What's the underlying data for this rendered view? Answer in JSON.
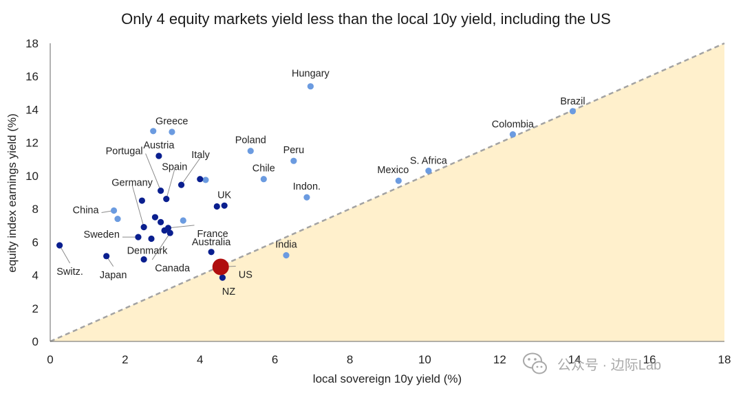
{
  "chart_data": {
    "type": "scatter",
    "title": "Only 4 equity markets yield less than the local 10y yield, including the US",
    "xlabel": "local sovereign 10y yield (%)",
    "ylabel": "equity index earnings yield (%)",
    "xlim": [
      0,
      18
    ],
    "ylim": [
      0,
      18
    ],
    "xticks": [
      "0",
      "2",
      "4",
      "6",
      "8",
      "10",
      "12",
      "14",
      "16",
      "18"
    ],
    "yticks": [
      "0",
      "2",
      "4",
      "6",
      "8",
      "10",
      "12",
      "14",
      "16",
      "18"
    ],
    "grid": false,
    "colors": {
      "developed": "#0a1f8f",
      "emerging": "#6b9be0",
      "us": "#b00e0e",
      "shade": "#fff0cc",
      "diagonal": "#a3a3a3"
    },
    "points": [
      {
        "label": "Hungary",
        "x": 6.95,
        "y": 15.4,
        "group": "emerging"
      },
      {
        "label": "Brazil",
        "x": 13.95,
        "y": 13.9,
        "group": "emerging"
      },
      {
        "label": "Colombia",
        "x": 12.35,
        "y": 12.5,
        "group": "emerging"
      },
      {
        "label": "S. Africa",
        "x": 10.1,
        "y": 10.3,
        "group": "emerging"
      },
      {
        "label": "Mexico",
        "x": 9.3,
        "y": 9.7,
        "group": "emerging"
      },
      {
        "label": "Poland",
        "x": 5.35,
        "y": 11.5,
        "group": "emerging"
      },
      {
        "label": "Peru",
        "x": 6.5,
        "y": 10.9,
        "group": "emerging"
      },
      {
        "label": "Chile",
        "x": 5.7,
        "y": 9.8,
        "group": "emerging"
      },
      {
        "label": "Indon.",
        "x": 6.85,
        "y": 8.7,
        "group": "emerging"
      },
      {
        "label": "India",
        "x": 6.3,
        "y": 5.2,
        "group": "emerging"
      },
      {
        "label": "Greece",
        "x": 2.75,
        "y": 12.7,
        "group": "emerging"
      },
      {
        "label": "",
        "x": 3.25,
        "y": 12.65,
        "group": "emerging"
      },
      {
        "label": "China",
        "x": 1.7,
        "y": 7.9,
        "group": "emerging"
      },
      {
        "label": "",
        "x": 1.8,
        "y": 7.4,
        "group": "emerging"
      },
      {
        "label": "",
        "x": 4.15,
        "y": 9.75,
        "group": "emerging"
      },
      {
        "label": "",
        "x": 3.55,
        "y": 7.3,
        "group": "emerging"
      },
      {
        "label": "Austria",
        "x": 2.9,
        "y": 11.2,
        "group": "developed"
      },
      {
        "label": "Portugal",
        "x": 2.95,
        "y": 9.1,
        "group": "developed"
      },
      {
        "label": "Spain",
        "x": 3.1,
        "y": 8.6,
        "group": "developed"
      },
      {
        "label": "Italy",
        "x": 3.5,
        "y": 9.45,
        "group": "developed"
      },
      {
        "label": "",
        "x": 4.0,
        "y": 9.8,
        "group": "developed"
      },
      {
        "label": "UK",
        "x": 4.65,
        "y": 8.2,
        "group": "developed"
      },
      {
        "label": "",
        "x": 4.45,
        "y": 8.15,
        "group": "developed"
      },
      {
        "label": "",
        "x": 2.45,
        "y": 8.5,
        "group": "developed"
      },
      {
        "label": "Germany",
        "x": 2.5,
        "y": 6.9,
        "group": "developed"
      },
      {
        "label": "",
        "x": 2.8,
        "y": 7.5,
        "group": "developed"
      },
      {
        "label": "",
        "x": 2.95,
        "y": 7.2,
        "group": "developed"
      },
      {
        "label": "France",
        "x": 3.15,
        "y": 6.85,
        "group": "developed"
      },
      {
        "label": "",
        "x": 3.05,
        "y": 6.7,
        "group": "developed"
      },
      {
        "label": "Canada",
        "x": 3.2,
        "y": 6.55,
        "group": "developed"
      },
      {
        "label": "Sweden",
        "x": 2.35,
        "y": 6.3,
        "group": "developed"
      },
      {
        "label": "Denmark",
        "x": 2.7,
        "y": 6.2,
        "group": "developed"
      },
      {
        "label": "Australia",
        "x": 4.3,
        "y": 5.4,
        "group": "developed"
      },
      {
        "label": "Switz.",
        "x": 0.25,
        "y": 5.8,
        "group": "developed"
      },
      {
        "label": "Japan",
        "x": 1.5,
        "y": 5.15,
        "group": "developed"
      },
      {
        "label": "",
        "x": 2.5,
        "y": 4.95,
        "group": "developed"
      },
      {
        "label": "NZ",
        "x": 4.6,
        "y": 3.85,
        "group": "developed"
      },
      {
        "label": "US",
        "x": 4.55,
        "y": 4.5,
        "group": "us"
      }
    ]
  },
  "watermark": {
    "text": "公众号 · 边际Lab",
    "icon": "wechat-icon"
  }
}
